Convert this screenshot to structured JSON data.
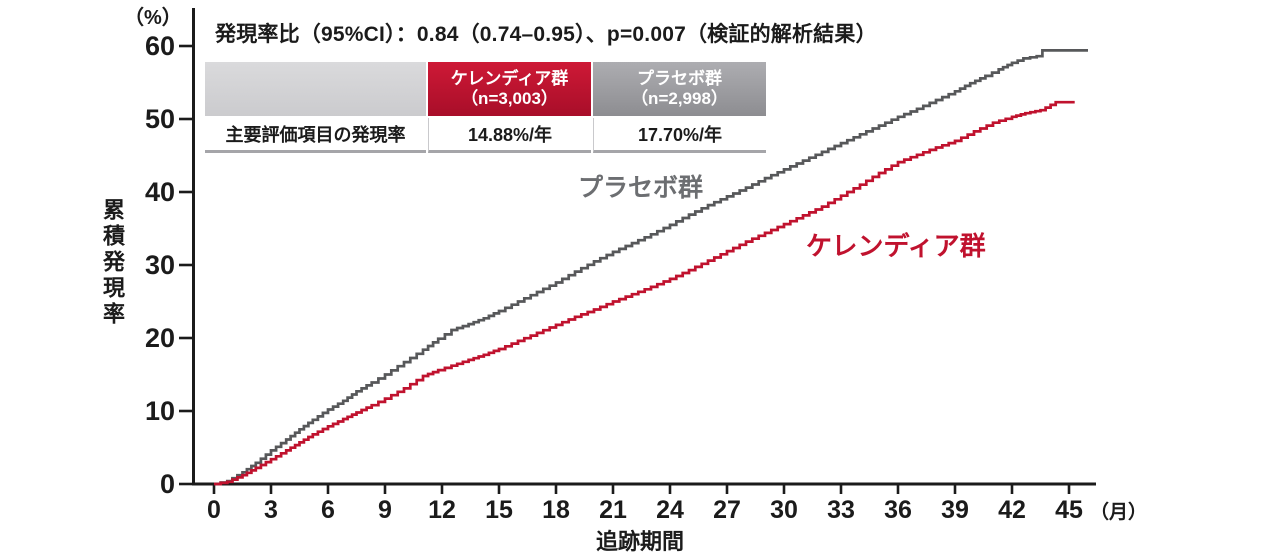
{
  "annotation": "発現率比（95%CI）：0.84（0.74–0.95）、p=0.007（検証的解析結果）",
  "table": {
    "corner": "",
    "columns": [
      {
        "name": "ケレンディア群",
        "n": "（n=3,003）",
        "color_top": "#ce1936",
        "color_bottom": "#a80e29"
      },
      {
        "name": "プラセボ群",
        "n": "（n=2,998）",
        "color_top": "#adadb1",
        "color_bottom": "#8d8d91"
      }
    ],
    "rows": [
      {
        "label": "主要評価項目の発現率",
        "values": [
          "14.88%/年",
          "17.70%/年"
        ]
      }
    ]
  },
  "chart_data": {
    "type": "line",
    "subtype": "step-cumulative-incidence",
    "title": "発現率比（95%CI）：0.84（0.74–0.95）、p=0.007（検証的解析結果）",
    "ylabel": "累積発現率",
    "y_unit_label": "（%）",
    "xlabel": "追跡期間",
    "x_unit_label": "（月）",
    "xlim": [
      0,
      45
    ],
    "ylim": [
      0,
      60
    ],
    "x_ticks": [
      0,
      3,
      6,
      9,
      12,
      15,
      18,
      21,
      24,
      27,
      30,
      33,
      36,
      39,
      42,
      45
    ],
    "y_ticks": [
      0,
      10,
      20,
      30,
      40,
      50,
      60
    ],
    "grid": false,
    "legend_position": "inline-curve-labels",
    "axis_color": "#1b1b1b",
    "series": [
      {
        "name": "プラセボ群",
        "color": "#57585a",
        "label_color": "#6c6e71",
        "points_month_percent": [
          [
            0,
            0
          ],
          [
            0.7,
            0.4
          ],
          [
            1.5,
            1.6
          ],
          [
            2.2,
            2.9
          ],
          [
            3,
            4.6
          ],
          [
            3.8,
            6.1
          ],
          [
            4.5,
            7.5
          ],
          [
            5.2,
            8.8
          ],
          [
            6,
            10.2
          ],
          [
            6.8,
            11.4
          ],
          [
            7.5,
            12.7
          ],
          [
            8.3,
            13.9
          ],
          [
            9,
            15.0
          ],
          [
            10,
            16.7
          ],
          [
            11,
            18.4
          ],
          [
            11.8,
            19.9
          ],
          [
            12.5,
            21.1
          ],
          [
            13.4,
            21.9
          ],
          [
            14.2,
            22.7
          ],
          [
            15,
            23.7
          ],
          [
            16,
            25.0
          ],
          [
            17,
            26.3
          ],
          [
            18,
            27.6
          ],
          [
            19,
            29.1
          ],
          [
            20,
            30.5
          ],
          [
            21,
            31.8
          ],
          [
            22,
            33.0
          ],
          [
            23,
            34.2
          ],
          [
            24,
            35.5
          ],
          [
            25,
            36.9
          ],
          [
            26,
            38.2
          ],
          [
            27,
            39.4
          ],
          [
            28,
            40.6
          ],
          [
            29,
            41.9
          ],
          [
            30,
            43.1
          ],
          [
            31,
            44.3
          ],
          [
            32,
            45.5
          ],
          [
            33,
            46.7
          ],
          [
            34,
            47.9
          ],
          [
            35,
            49.1
          ],
          [
            36,
            50.3
          ],
          [
            37,
            51.4
          ],
          [
            38,
            52.6
          ],
          [
            39,
            53.8
          ],
          [
            39.8,
            54.9
          ],
          [
            40.6,
            55.9
          ],
          [
            41.3,
            56.8
          ],
          [
            42,
            57.7
          ],
          [
            42.6,
            58.3
          ],
          [
            43.3,
            58.6
          ],
          [
            43.6,
            59.4
          ],
          [
            46,
            59.4
          ]
        ]
      },
      {
        "name": "ケレンディア群",
        "color": "#c0122e",
        "label_color": "#c0122e",
        "points_month_percent": [
          [
            0,
            0
          ],
          [
            0.7,
            0.3
          ],
          [
            1.5,
            1.2
          ],
          [
            2.2,
            2.2
          ],
          [
            3,
            3.4
          ],
          [
            3.8,
            4.6
          ],
          [
            4.5,
            5.7
          ],
          [
            5.2,
            6.8
          ],
          [
            6,
            7.9
          ],
          [
            6.8,
            8.9
          ],
          [
            7.5,
            9.8
          ],
          [
            8.3,
            10.8
          ],
          [
            9,
            11.7
          ],
          [
            10,
            13.1
          ],
          [
            11,
            14.8
          ],
          [
            11.8,
            15.6
          ],
          [
            12.5,
            16.2
          ],
          [
            13.4,
            17.0
          ],
          [
            14.2,
            17.7
          ],
          [
            15,
            18.5
          ],
          [
            16,
            19.6
          ],
          [
            17,
            20.7
          ],
          [
            18,
            21.8
          ],
          [
            19,
            22.9
          ],
          [
            20,
            23.9
          ],
          [
            21,
            25.0
          ],
          [
            22,
            26.0
          ],
          [
            23,
            27.0
          ],
          [
            24,
            28.1
          ],
          [
            25,
            29.3
          ],
          [
            26,
            30.6
          ],
          [
            27,
            31.9
          ],
          [
            28,
            33.2
          ],
          [
            29,
            34.4
          ],
          [
            30,
            35.6
          ],
          [
            31,
            36.8
          ],
          [
            32,
            38.0
          ],
          [
            33,
            39.5
          ],
          [
            34,
            41.0
          ],
          [
            35,
            42.6
          ],
          [
            36,
            44.1
          ],
          [
            37,
            45.1
          ],
          [
            38,
            46.1
          ],
          [
            39,
            47.0
          ],
          [
            40,
            48.3
          ],
          [
            41,
            49.5
          ],
          [
            42,
            50.3
          ],
          [
            42.7,
            50.8
          ],
          [
            43.5,
            51.2
          ],
          [
            44.3,
            52.3
          ],
          [
            45.3,
            52.3
          ]
        ]
      }
    ]
  }
}
